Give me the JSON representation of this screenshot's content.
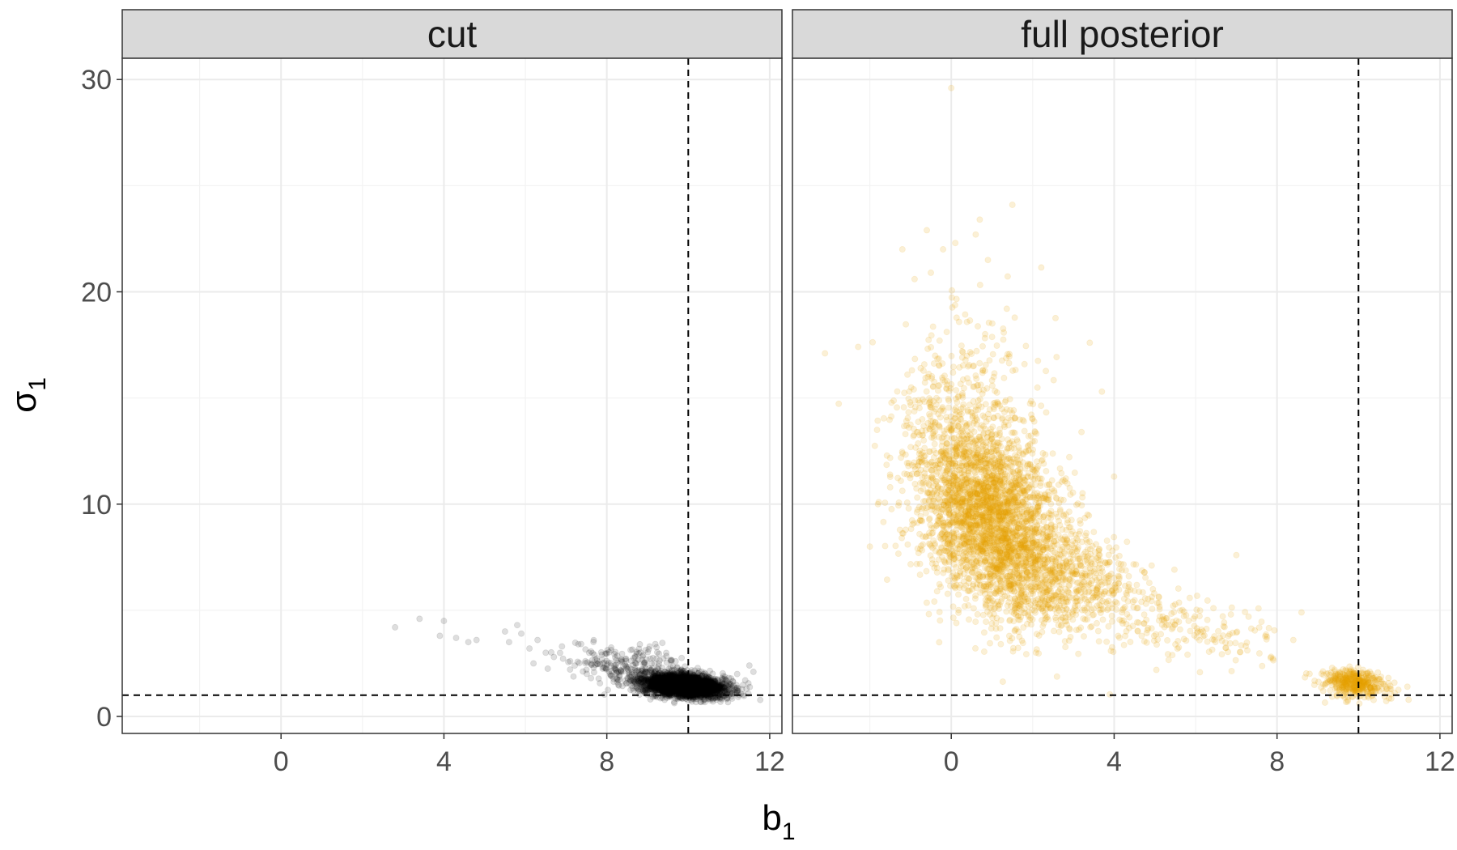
{
  "chart_data": {
    "type": "scatter",
    "xlabel": {
      "main": "b",
      "sub": "1"
    },
    "ylabel": {
      "main": "σ",
      "sub": "1"
    },
    "xlim": [
      -3.9,
      12.3
    ],
    "ylim": [
      -0.8,
      31.0
    ],
    "x_ticks": [
      0,
      4,
      8,
      12
    ],
    "y_ticks": [
      0,
      10,
      20,
      30
    ],
    "x_tick_labels": [
      "0",
      "4",
      "8",
      "12"
    ],
    "y_tick_labels": [
      "0",
      "10",
      "20",
      "30"
    ],
    "reference_lines": {
      "vertical_x": 10,
      "horizontal_y": 1
    },
    "panels": [
      {
        "label": "cut",
        "color": "#000000",
        "point_opacity": 0.13,
        "clusters": [
          {
            "center": [
              9.9,
              1.45
            ],
            "sd": [
              0.5,
              0.28
            ],
            "rho": -0.3,
            "n": 3200
          },
          {
            "center": [
              8.6,
              2.4
            ],
            "sd": [
              0.7,
              0.45
            ],
            "rho": -0.2,
            "n": 220
          }
        ],
        "points": [
          [
            2.8,
            4.2
          ],
          [
            3.4,
            4.6
          ],
          [
            4.0,
            4.5
          ],
          [
            3.9,
            3.8
          ],
          [
            4.3,
            3.7
          ],
          [
            4.6,
            3.5
          ],
          [
            4.8,
            3.6
          ],
          [
            5.5,
            4.0
          ],
          [
            5.6,
            3.5
          ],
          [
            5.8,
            4.3
          ],
          [
            5.9,
            3.9
          ],
          [
            6.1,
            3.2
          ],
          [
            6.3,
            3.6
          ],
          [
            6.2,
            2.5
          ],
          [
            6.5,
            3.0
          ],
          [
            6.7,
            2.8
          ],
          [
            6.9,
            3.3
          ],
          [
            7.1,
            2.6
          ],
          [
            7.3,
            3.4
          ],
          [
            7.5,
            2.2
          ],
          [
            11.5,
            2.4
          ],
          [
            11.6,
            2.1
          ],
          [
            11.2,
            2.0
          ],
          [
            11.4,
            1.7
          ]
        ]
      },
      {
        "label": "full posterior",
        "color": "#E69F00",
        "point_opacity": 0.16,
        "clusters": [
          {
            "center": [
              0.9,
              9.6
            ],
            "sd": [
              0.95,
              2.4
            ],
            "rho": -0.35,
            "n": 3000
          },
          {
            "center": [
              2.6,
              6.7
            ],
            "sd": [
              1.1,
              1.3
            ],
            "rho": -0.45,
            "n": 700
          },
          {
            "center": [
              5.8,
              4.3
            ],
            "sd": [
              1.1,
              0.9
            ],
            "rho": -0.6,
            "n": 170
          },
          {
            "center": [
              9.9,
              1.55
            ],
            "sd": [
              0.4,
              0.32
            ],
            "rho": -0.2,
            "n": 420
          },
          {
            "center": [
              0.4,
              15.5
            ],
            "sd": [
              0.9,
              2.2
            ],
            "rho": 0.0,
            "n": 180
          }
        ],
        "points": [
          [
            0.0,
            29.6
          ],
          [
            -3.1,
            17.1
          ],
          [
            -0.6,
            22.9
          ],
          [
            -1.2,
            22.0
          ],
          [
            0.1,
            22.3
          ],
          [
            -0.2,
            22.0
          ],
          [
            0.6,
            22.7
          ],
          [
            0.7,
            23.4
          ],
          [
            1.5,
            24.1
          ],
          [
            -0.9,
            20.6
          ],
          [
            -0.5,
            20.9
          ],
          [
            0.9,
            21.5
          ],
          [
            -1.8,
            10.0
          ],
          [
            -2.0,
            8.0
          ],
          [
            3.4,
            17.6
          ],
          [
            3.7,
            15.3
          ],
          [
            4.0,
            11.3
          ],
          [
            7.0,
            7.6
          ],
          [
            7.3,
            4.7
          ],
          [
            8.6,
            4.9
          ],
          [
            8.4,
            3.6
          ],
          [
            11.2,
            1.4
          ]
        ]
      }
    ]
  }
}
